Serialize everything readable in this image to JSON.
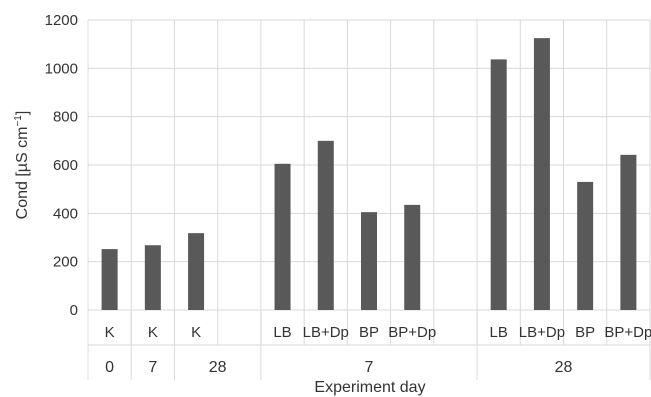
{
  "chart_data": {
    "type": "bar",
    "categories": [
      "K",
      "K",
      "K",
      "",
      "LB",
      "LB+Dp",
      "BP",
      "BP+Dp",
      "",
      "LB",
      "LB+Dp",
      "BP",
      "BP+Dp"
    ],
    "groups": [
      {
        "label": "0",
        "span": [
          0,
          0
        ]
      },
      {
        "label": "7",
        "span": [
          1,
          1
        ]
      },
      {
        "label": "28",
        "span": [
          2,
          3
        ]
      },
      {
        "label": "7",
        "span": [
          4,
          8
        ]
      },
      {
        "label": "28",
        "span": [
          9,
          12
        ]
      }
    ],
    "values": [
      252,
      268,
      318,
      null,
      605,
      700,
      405,
      435,
      null,
      1037,
      1125,
      530,
      642
    ],
    "ylim": [
      0,
      1200
    ],
    "yticks": [
      0,
      200,
      400,
      600,
      800,
      1000,
      1200
    ],
    "ylabel_main": "Cond [µS cm",
    "ylabel_sup": "−1",
    "ylabel_close": "]",
    "xlabel": "Experiment day",
    "bar_color": "#595959",
    "grid": true,
    "grid_color": "#d9d9d9"
  }
}
